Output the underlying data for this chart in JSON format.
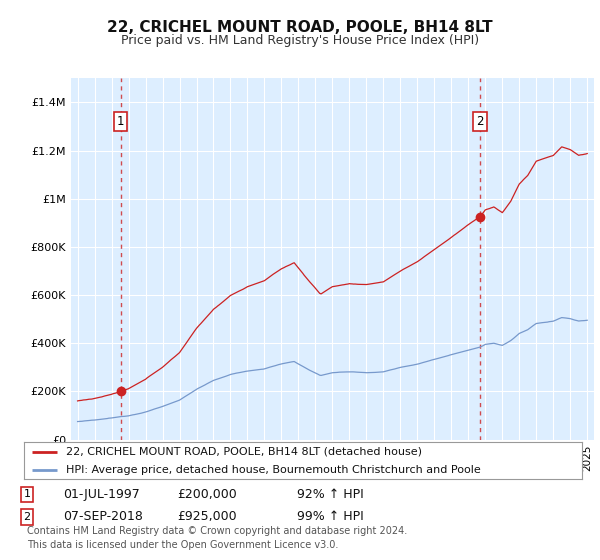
{
  "title": "22, CRICHEL MOUNT ROAD, POOLE, BH14 8LT",
  "subtitle": "Price paid vs. HM Land Registry's House Price Index (HPI)",
  "ylim": [
    0,
    1500000
  ],
  "yticks": [
    0,
    200000,
    400000,
    600000,
    800000,
    1000000,
    1200000,
    1400000
  ],
  "ytick_labels": [
    "£0",
    "£200K",
    "£400K",
    "£600K",
    "£800K",
    "£1M",
    "£1.2M",
    "£1.4M"
  ],
  "xlim_start": 1994.6,
  "xlim_end": 2025.4,
  "house_color": "#cc2222",
  "hpi_color": "#7799cc",
  "sale1_x": 1997.54,
  "sale1_y": 200000,
  "sale2_x": 2018.69,
  "sale2_y": 925000,
  "legend_house": "22, CRICHEL MOUNT ROAD, POOLE, BH14 8LT (detached house)",
  "legend_hpi": "HPI: Average price, detached house, Bournemouth Christchurch and Poole",
  "sale1_date": "01-JUL-1997",
  "sale1_price": "£200,000",
  "sale1_pct": "92% ↑ HPI",
  "sale2_date": "07-SEP-2018",
  "sale2_price": "£925,000",
  "sale2_pct": "99% ↑ HPI",
  "footer": "Contains HM Land Registry data © Crown copyright and database right 2024.\nThis data is licensed under the Open Government Licence v3.0.",
  "fig_bg": "#ffffff",
  "plot_bg": "#ddeeff",
  "grid_color": "#ffffff",
  "title_fontsize": 11,
  "subtitle_fontsize": 9,
  "tick_fontsize": 8,
  "annot_fontsize": 9,
  "legend_fontsize": 8,
  "footer_fontsize": 7
}
